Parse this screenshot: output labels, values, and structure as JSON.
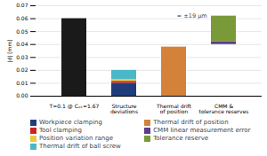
{
  "chart_data": {
    "type": "bar",
    "stacked": true,
    "categories": [
      "T=0.1 @ Cₓₖ=1.67",
      "Structure\ndeviations",
      "Thermal drift\nof position",
      "CMM &\ntolerance reserves"
    ],
    "bases": [
      0,
      0,
      0,
      0.04
    ],
    "series": [
      {
        "color": "#1a1a1a",
        "values": [
          0.06,
          0.0,
          0.0,
          0.0
        ]
      },
      {
        "name": "Workpiece clamping",
        "color": "#1f3d7a",
        "values": [
          0.0,
          0.01,
          0.0,
          0.0
        ]
      },
      {
        "name": "Tool clamping",
        "color": "#cc2222",
        "values": [
          0.0,
          0.0015,
          0.0,
          0.0
        ]
      },
      {
        "name": "Position variation range",
        "color": "#e8c840",
        "values": [
          0.0,
          0.0015,
          0.0,
          0.0
        ]
      },
      {
        "name": "Thermal drift of ball screw",
        "color": "#4ab8c8",
        "values": [
          0.0,
          0.007,
          0.0,
          0.0
        ]
      },
      {
        "name": "Thermal drift of position",
        "color": "#d4823a",
        "values": [
          0.0,
          0.0,
          0.038,
          0.0
        ]
      },
      {
        "name": "CMM linear measurement error",
        "color": "#5b3d8a",
        "values": [
          0.0,
          0.0,
          0.0,
          0.002
        ]
      },
      {
        "name": "Tolerance reserve",
        "color": "#7a9a3a",
        "values": [
          0.0,
          0.0,
          0.0,
          0.02
        ]
      }
    ],
    "ylabel": "|d| [mm]",
    "annotation": "≈ ±19 μm",
    "ylim": [
      0,
      0.07
    ],
    "yticks": [
      {
        "value": 0,
        "label": "0.00"
      },
      0.01,
      0.02,
      0.03,
      0.04,
      0.05,
      0.06,
      0.07
    ],
    "grid": true,
    "legend": "bottom"
  }
}
